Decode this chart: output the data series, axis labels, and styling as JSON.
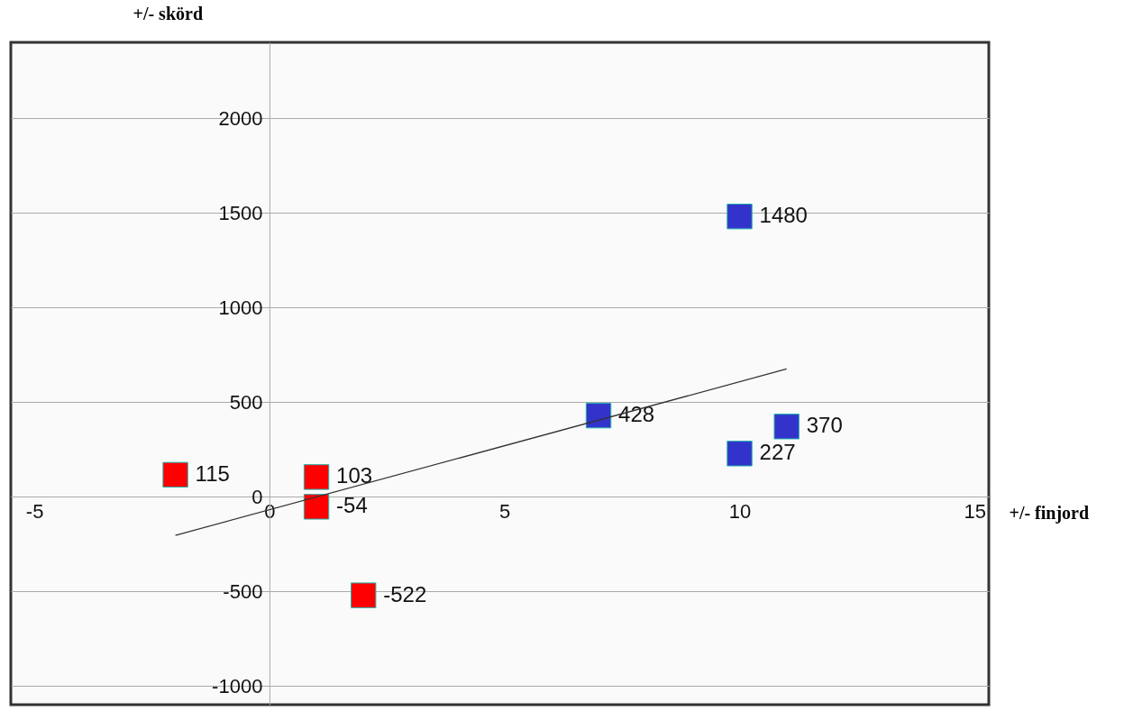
{
  "chart_data": {
    "type": "scatter",
    "xlabel": "+/- finjord",
    "ylabel": "+/- skörd",
    "xlim": [
      -5.5,
      15.3
    ],
    "ylim": [
      -1100,
      2400
    ],
    "xticks": [
      -5,
      0,
      5,
      10,
      15
    ],
    "yticks": [
      -1000,
      -500,
      0,
      500,
      1000,
      1500,
      2000
    ],
    "grid": "y",
    "legend": false,
    "series": [
      {
        "color": "#ff0000",
        "marker": "square",
        "x": [
          -2,
          1,
          1,
          2
        ],
        "values": [
          115,
          103,
          -54,
          -522
        ],
        "value_labels": [
          "115",
          "103",
          "-54",
          "-522"
        ]
      },
      {
        "color": "#3333cc",
        "marker": "square",
        "x": [
          7,
          10,
          11,
          10
        ],
        "values": [
          428,
          1480,
          370,
          227
        ],
        "value_labels": [
          "428",
          "1480",
          "370",
          "227"
        ]
      },
      {
        "type": "line",
        "color": "#333333",
        "marker": "none",
        "x": [
          -2,
          11
        ],
        "values": [
          -205,
          674
        ]
      }
    ]
  }
}
